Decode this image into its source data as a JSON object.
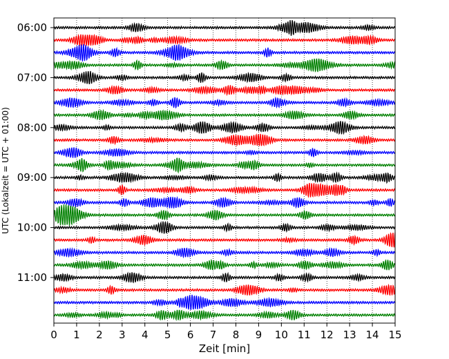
{
  "chart_data": {
    "type": "line",
    "subtype": "helicorder",
    "xlabel": "Zeit  [min]",
    "ylabel": "UTC (Lokalzeit = UTC + 01:00)",
    "xlim": [
      0,
      15
    ],
    "x_ticks": [
      "0",
      "1",
      "2",
      "3",
      "4",
      "5",
      "6",
      "7",
      "8",
      "9",
      "10",
      "11",
      "12",
      "13",
      "14",
      "15"
    ],
    "y_tick_labels": [
      "06:00",
      "07:00",
      "08:00",
      "09:00",
      "10:00",
      "11:00"
    ],
    "trace_start_times": [
      "06:00",
      "06:15",
      "06:30",
      "06:45",
      "07:00",
      "07:15",
      "07:30",
      "07:45",
      "08:00",
      "08:15",
      "08:30",
      "08:45",
      "09:00",
      "09:15",
      "09:30",
      "09:45",
      "10:00",
      "10:15",
      "10:30",
      "10:45",
      "11:00",
      "11:15",
      "11:30",
      "11:45"
    ],
    "trace_colors": [
      "#000000",
      "#ff0000",
      "#0000ff",
      "#008000"
    ],
    "vertical_grid": "dotted",
    "minutes_per_trace": 15
  }
}
